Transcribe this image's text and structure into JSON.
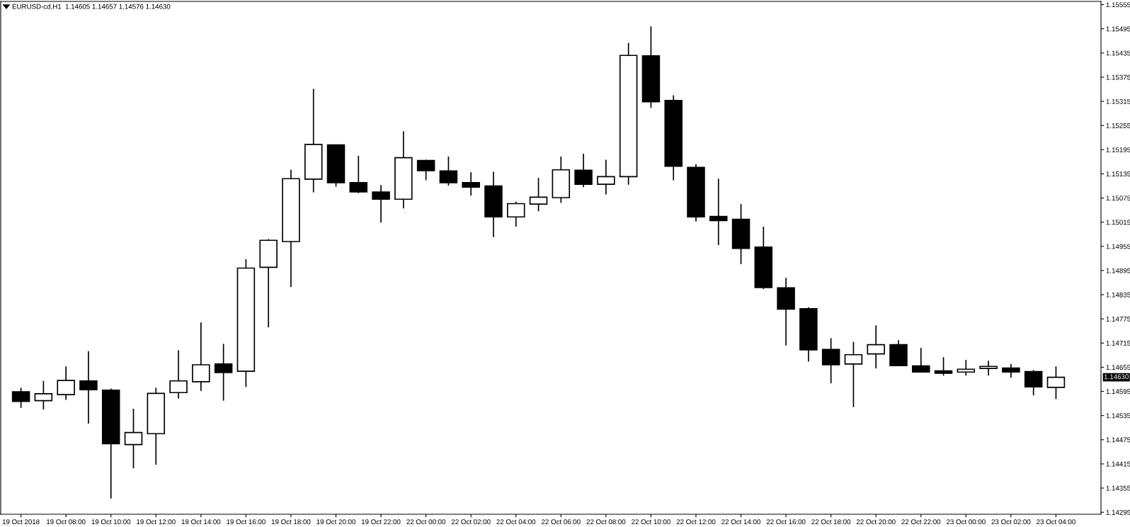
{
  "chart_data": {
    "type": "candlestick",
    "title": "EURUSD-cd,H1  1.14605 1.14657 1.14576 1.14630",
    "categories": [
      "19 Oct 2018",
      null,
      "19 Oct 08:00",
      null,
      "19 Oct 10:00",
      null,
      "19 Oct 12:00",
      null,
      "19 Oct 14:00",
      null,
      "19 Oct 16:00",
      null,
      "19 Oct 18:00",
      null,
      "19 Oct 20:00",
      null,
      "19 Oct 22:00",
      null,
      "22 Oct 00:00",
      null,
      "22 Oct 02:00",
      null,
      "22 Oct 04:00",
      null,
      "22 Oct 06:00",
      null,
      "22 Oct 08:00",
      null,
      "22 Oct 10:00",
      null,
      "22 Oct 12:00",
      null,
      "22 Oct 14:00",
      null,
      "22 Oct 16:00",
      null,
      "22 Oct 18:00",
      null,
      "22 Oct 20:00",
      null,
      "22 Oct 22:00",
      null,
      "23 Oct 00:00",
      null,
      "23 Oct 02:00",
      null,
      "23 Oct 04:00"
    ],
    "ohlc": [
      [
        1.14594,
        1.14604,
        1.14554,
        1.1457
      ],
      [
        1.14572,
        1.14621,
        1.1455,
        1.14589
      ],
      [
        1.14587,
        1.14657,
        1.14574,
        1.14622
      ],
      [
        1.14621,
        1.14695,
        1.14515,
        1.14599
      ],
      [
        1.14598,
        1.14602,
        1.14329,
        1.14465
      ],
      [
        1.14463,
        1.14552,
        1.14404,
        1.14493
      ],
      [
        1.1449,
        1.14604,
        1.14413,
        1.1459
      ],
      [
        1.14592,
        1.14697,
        1.14577,
        1.14621
      ],
      [
        1.14619,
        1.14766,
        1.14596,
        1.14661
      ],
      [
        1.14663,
        1.14713,
        1.14572,
        1.14642
      ],
      [
        1.14645,
        1.14923,
        1.14606,
        1.14901
      ],
      [
        1.14903,
        1.14973,
        1.14754,
        1.1497
      ],
      [
        1.14967,
        1.15145,
        1.14854,
        1.15123
      ],
      [
        1.15122,
        1.15346,
        1.15089,
        1.15208
      ],
      [
        1.15207,
        1.15207,
        1.15103,
        1.15113
      ],
      [
        1.15113,
        1.1518,
        1.15087,
        1.1509
      ],
      [
        1.1509,
        1.15107,
        1.15014,
        1.15072
      ],
      [
        1.15072,
        1.15241,
        1.15049,
        1.15175
      ],
      [
        1.15168,
        1.1517,
        1.15119,
        1.15143
      ],
      [
        1.15142,
        1.15178,
        1.15106,
        1.15113
      ],
      [
        1.15113,
        1.15139,
        1.15081,
        1.15102
      ],
      [
        1.15105,
        1.1514,
        1.14978,
        1.15028
      ],
      [
        1.15028,
        1.15066,
        1.15004,
        1.15061
      ],
      [
        1.1506,
        1.15125,
        1.15042,
        1.15077
      ],
      [
        1.15076,
        1.15178,
        1.15063,
        1.15145
      ],
      [
        1.15144,
        1.15185,
        1.15102,
        1.15109
      ],
      [
        1.15109,
        1.1517,
        1.15084,
        1.15128
      ],
      [
        1.15128,
        1.1546,
        1.15108,
        1.15429
      ],
      [
        1.15428,
        1.15501,
        1.15299,
        1.15314
      ],
      [
        1.15317,
        1.1533,
        1.15119,
        1.15154
      ],
      [
        1.15151,
        1.15159,
        1.15017,
        1.15028
      ],
      [
        1.15029,
        1.15123,
        1.14958,
        1.15019
      ],
      [
        1.15022,
        1.1506,
        1.14911,
        1.1495
      ],
      [
        1.14953,
        1.15004,
        1.14849,
        1.14853
      ],
      [
        1.14852,
        1.14877,
        1.14709,
        1.14799
      ],
      [
        1.148,
        1.14804,
        1.14669,
        1.14698
      ],
      [
        1.14699,
        1.14727,
        1.14615,
        1.14661
      ],
      [
        1.14663,
        1.14718,
        1.14556,
        1.14686
      ],
      [
        1.14688,
        1.14759,
        1.14652,
        1.14711
      ],
      [
        1.14711,
        1.14722,
        1.14658,
        1.14659
      ],
      [
        1.14658,
        1.14703,
        1.14643,
        1.14643
      ],
      [
        1.14646,
        1.1468,
        1.14634,
        1.1464
      ],
      [
        1.14643,
        1.14673,
        1.14634,
        1.1465
      ],
      [
        1.14652,
        1.14671,
        1.14634,
        1.14657
      ],
      [
        1.14653,
        1.14663,
        1.14629,
        1.14643
      ],
      [
        1.14644,
        1.14648,
        1.14585,
        1.14606
      ],
      [
        1.14605,
        1.14657,
        1.14576,
        1.1463
      ]
    ],
    "ylim": [
      1.1429,
      1.15563
    ],
    "yticks": [
      {
        "value": 1.14295,
        "label": "1.14295"
      },
      {
        "value": 1.14355,
        "label": "1.14355"
      },
      {
        "value": 1.14415,
        "label": "1.14415"
      },
      {
        "value": 1.14475,
        "label": "1.14475"
      },
      {
        "value": 1.14535,
        "label": "1.14535"
      },
      {
        "value": 1.14595,
        "label": "1.14595"
      },
      {
        "value": 1.14655,
        "label": "1.14655"
      },
      {
        "value": 1.14715,
        "label": "1.14715"
      },
      {
        "value": 1.14775,
        "label": "1.14775"
      },
      {
        "value": 1.14835,
        "label": "1.14835"
      },
      {
        "value": 1.14895,
        "label": "1.14895"
      },
      {
        "value": 1.14955,
        "label": "1.14955"
      },
      {
        "value": 1.15015,
        "label": "1.15015"
      },
      {
        "value": 1.15075,
        "label": "1.15075"
      },
      {
        "value": 1.15135,
        "label": "1.15135"
      },
      {
        "value": 1.15195,
        "label": "1.15195"
      },
      {
        "value": 1.15255,
        "label": "1.15255"
      },
      {
        "value": 1.15315,
        "label": "1.15315"
      },
      {
        "value": 1.15375,
        "label": "1.15375"
      },
      {
        "value": 1.15435,
        "label": "1.15435"
      },
      {
        "value": 1.15495,
        "label": "1.15495"
      },
      {
        "value": 1.15555,
        "label": "1.15555"
      }
    ],
    "annotations": [
      "1.14630"
    ],
    "grid": false,
    "legend": false
  }
}
